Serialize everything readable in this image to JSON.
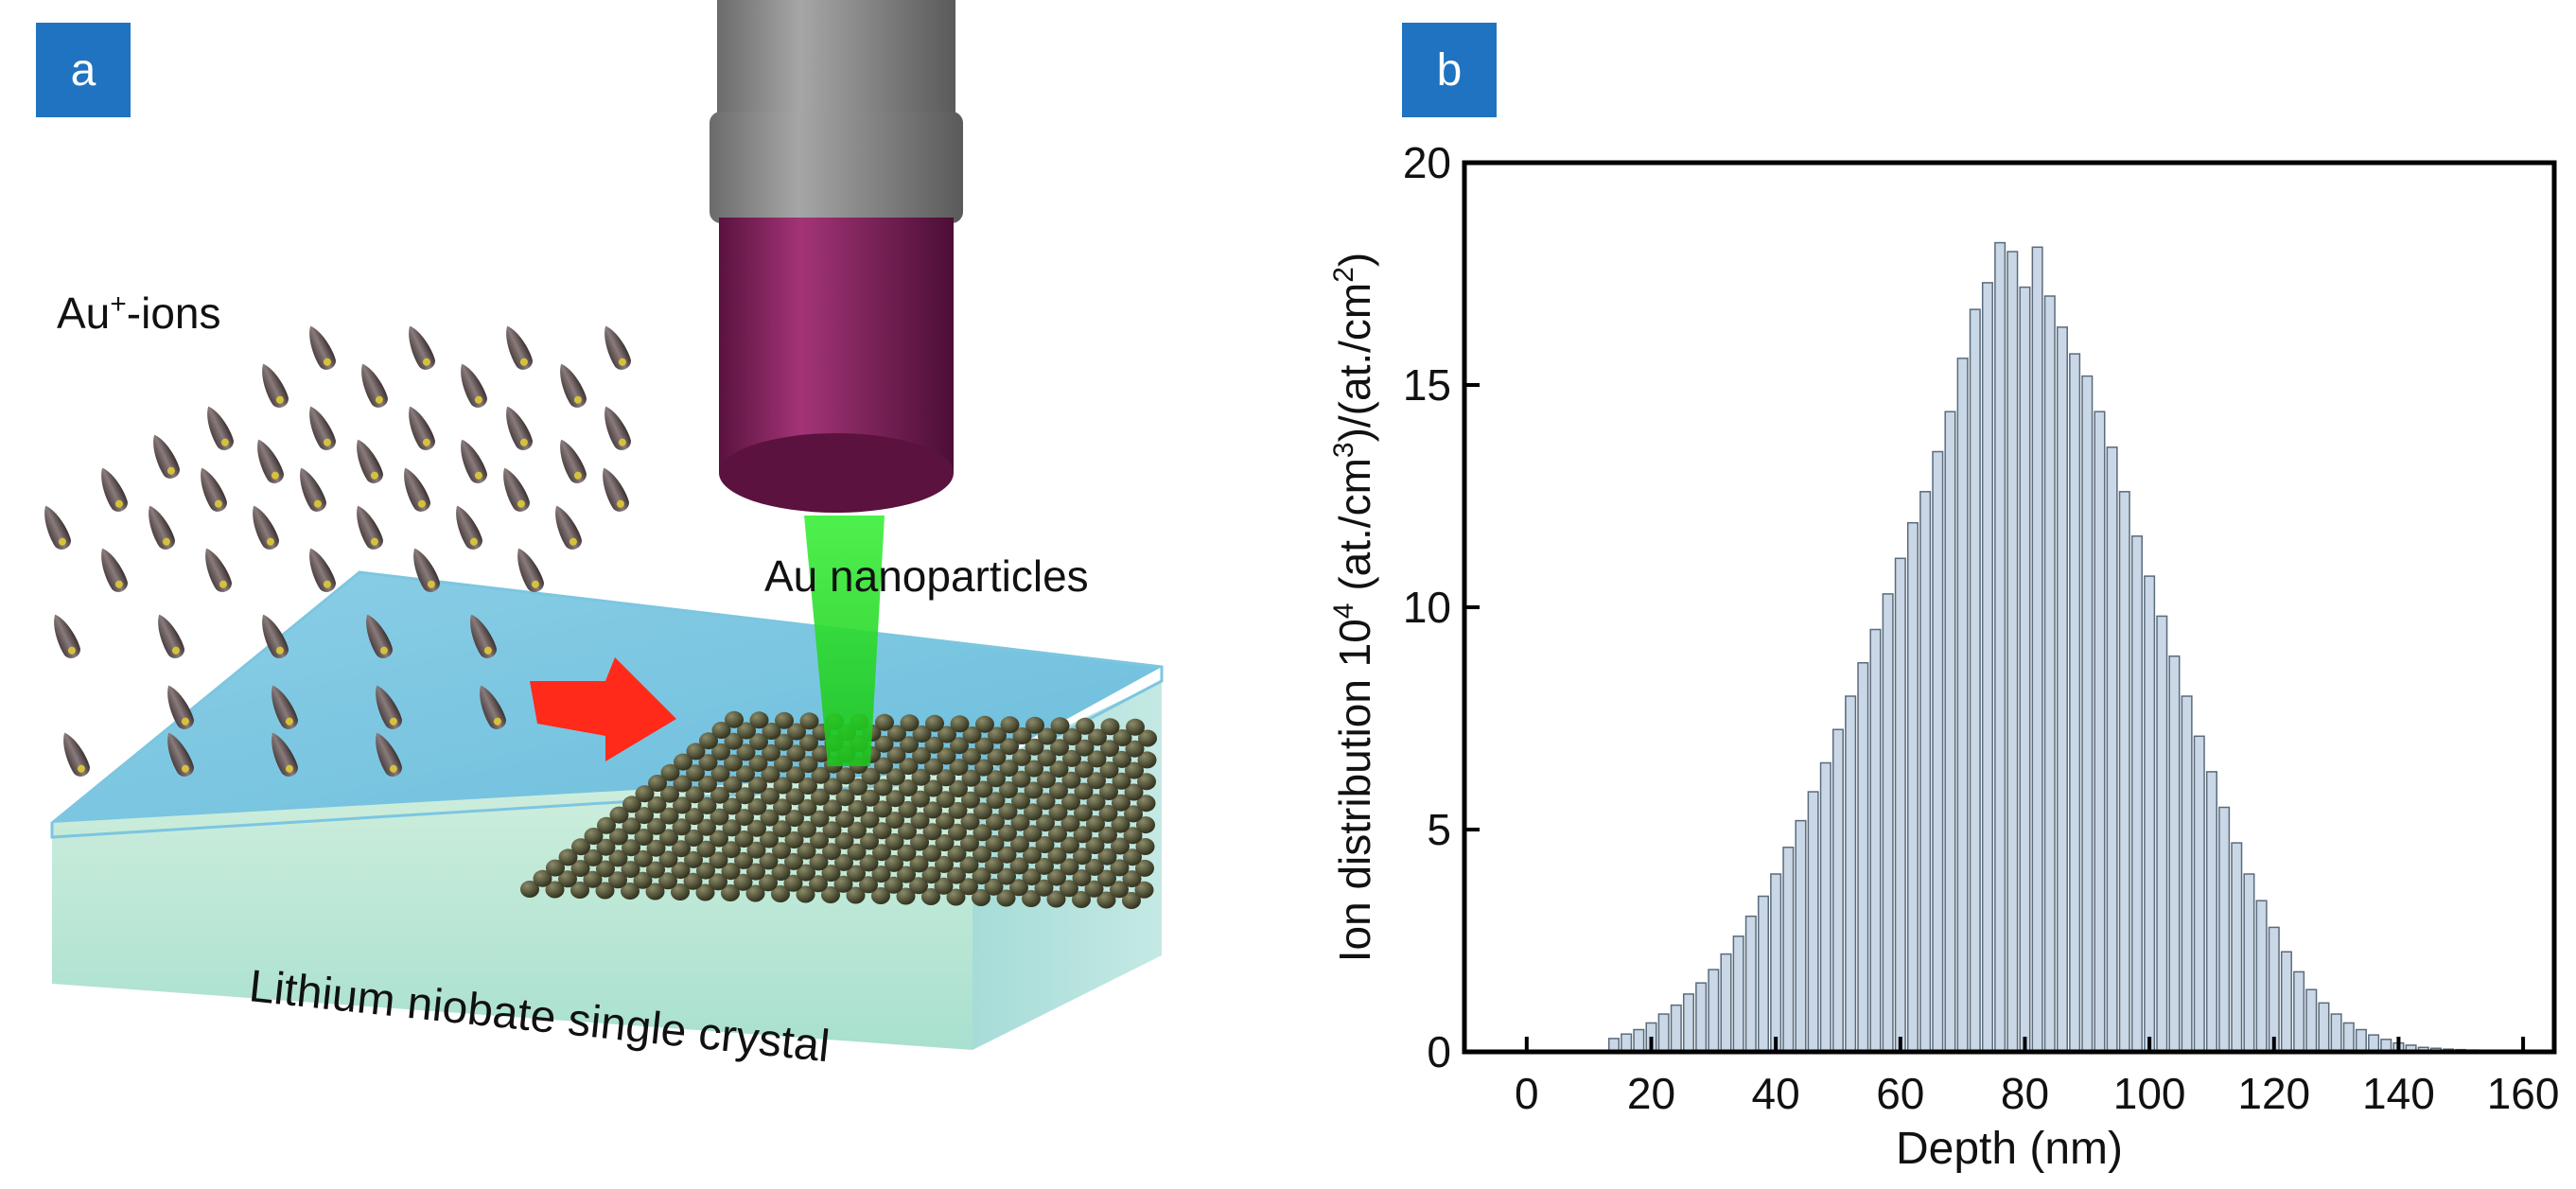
{
  "panel_a": {
    "label": "a",
    "ions_label": "Au",
    "ions_label_sup": "+",
    "ions_label_suffix": "-ions",
    "nanoparticles_label": "Au nanoparticles",
    "crystal_label": "Lithium niobate single crystal"
  },
  "panel_b": {
    "label": "b",
    "ylabel_prefix": "Ion distribution 10",
    "ylabel_exp": "4",
    "ylabel_mid": " (at./cm",
    "ylabel_exp2": "3",
    "ylabel_mid2": ")/(at./cm",
    "ylabel_exp3": "2",
    "ylabel_suffix": ")",
    "xlabel": "Depth (nm)"
  },
  "colors": {
    "label_bg": "#1f73c0",
    "bar_fill": "#c9d7e6",
    "bar_stroke": "#5a6b7c",
    "arrow": "#ff2a1a",
    "beam": "#21e021",
    "tube": "#7a1f55"
  },
  "chart_data": {
    "type": "bar",
    "title": "",
    "xlabel": "Depth (nm)",
    "ylabel": "Ion distribution 10^4 (at./cm^3)/(at./cm^2)",
    "xlim": [
      -10,
      165
    ],
    "ylim": [
      0,
      20
    ],
    "xticks": [
      0,
      20,
      40,
      60,
      80,
      100,
      120,
      140,
      160
    ],
    "yticks": [
      0,
      5,
      10,
      15,
      20
    ],
    "mean": 76.5,
    "sigma": 22.5,
    "peak": 17.6,
    "bin_width": 1.6,
    "x_start": 13,
    "x_end": 157,
    "bars": [
      [
        14,
        0.3
      ],
      [
        16,
        0.4
      ],
      [
        18,
        0.5
      ],
      [
        20,
        0.65
      ],
      [
        22,
        0.85
      ],
      [
        24,
        1.05
      ],
      [
        26,
        1.3
      ],
      [
        28,
        1.55
      ],
      [
        30,
        1.85
      ],
      [
        32,
        2.2
      ],
      [
        34,
        2.6
      ],
      [
        36,
        3.05
      ],
      [
        38,
        3.5
      ],
      [
        40,
        4.0
      ],
      [
        42,
        4.6
      ],
      [
        44,
        5.2
      ],
      [
        46,
        5.85
      ],
      [
        48,
        6.5
      ],
      [
        50,
        7.25
      ],
      [
        52,
        8.0
      ],
      [
        54,
        8.75
      ],
      [
        56,
        9.5
      ],
      [
        58,
        10.3
      ],
      [
        60,
        11.1
      ],
      [
        62,
        11.9
      ],
      [
        64,
        12.6
      ],
      [
        66,
        13.5
      ],
      [
        68,
        14.4
      ],
      [
        70,
        15.6
      ],
      [
        72,
        16.7
      ],
      [
        74,
        17.3
      ],
      [
        76,
        18.2
      ],
      [
        78,
        18.0
      ],
      [
        80,
        17.2
      ],
      [
        82,
        18.1
      ],
      [
        84,
        17.0
      ],
      [
        86,
        16.3
      ],
      [
        88,
        15.7
      ],
      [
        90,
        15.2
      ],
      [
        92,
        14.4
      ],
      [
        94,
        13.6
      ],
      [
        96,
        12.6
      ],
      [
        98,
        11.6
      ],
      [
        100,
        10.7
      ],
      [
        102,
        9.8
      ],
      [
        104,
        8.9
      ],
      [
        106,
        8.0
      ],
      [
        108,
        7.1
      ],
      [
        110,
        6.3
      ],
      [
        112,
        5.5
      ],
      [
        114,
        4.7
      ],
      [
        116,
        4.0
      ],
      [
        118,
        3.4
      ],
      [
        120,
        2.8
      ],
      [
        122,
        2.25
      ],
      [
        124,
        1.8
      ],
      [
        126,
        1.4
      ],
      [
        128,
        1.1
      ],
      [
        130,
        0.85
      ],
      [
        132,
        0.65
      ],
      [
        134,
        0.5
      ],
      [
        136,
        0.38
      ],
      [
        138,
        0.28
      ],
      [
        140,
        0.2
      ],
      [
        142,
        0.15
      ],
      [
        144,
        0.1
      ],
      [
        146,
        0.08
      ],
      [
        148,
        0.06
      ],
      [
        150,
        0.05
      ],
      [
        152,
        0.04
      ],
      [
        154,
        0.03
      ],
      [
        156,
        0.02
      ]
    ]
  }
}
